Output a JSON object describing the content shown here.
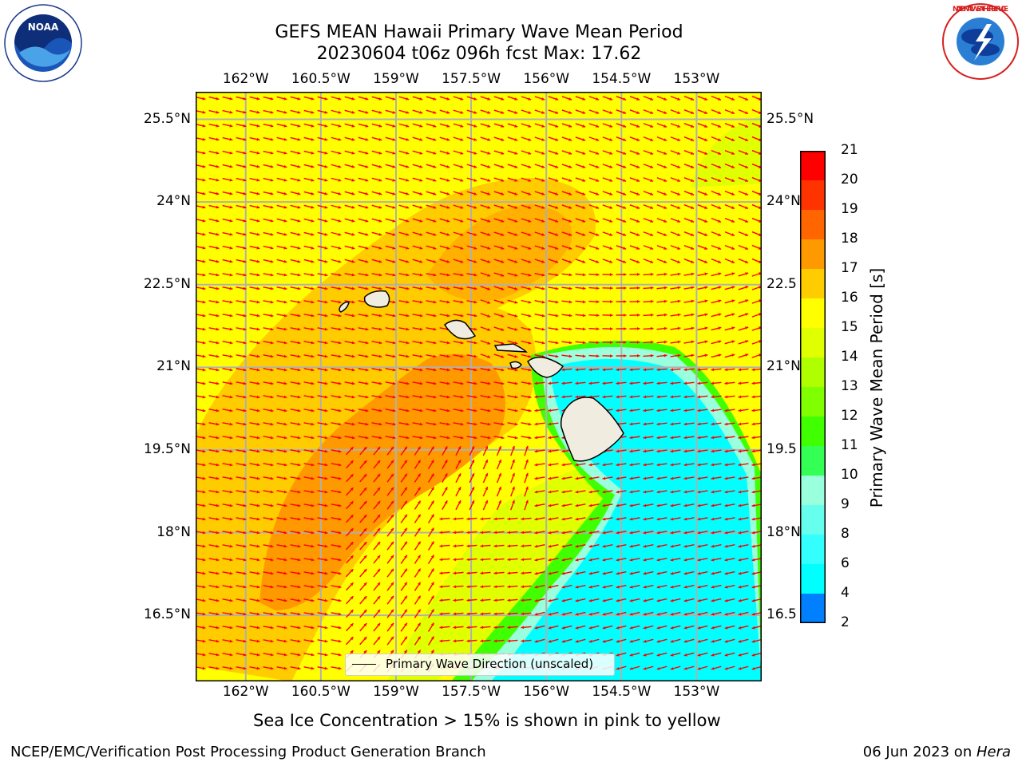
{
  "header": {
    "title_line1": "GEFS MEAN Hawaii Primary Wave Mean Period",
    "title_line2": "20230604 t06z 096h fcst   Max: 17.62"
  },
  "logos": {
    "noaa_text": "NOAA",
    "noaa_ring": "NATIONAL OCEANIC AND ATMOSPHERIC ADMINISTRATION · U.S. DEPARTMENT OF COMMERCE",
    "nws_ring": "NATIONAL WEATHER SERVICE"
  },
  "map": {
    "lon_labels": [
      "162°W",
      "160.5°W",
      "159°W",
      "157.5°W",
      "156°W",
      "154.5°W",
      "153°W"
    ],
    "lat_labels_left": [
      "25.5°N",
      "24°N",
      "22.5°N",
      "21°N",
      "19.5°N",
      "18°N",
      "16.5°N"
    ],
    "lat_labels_right": [
      "25.5°N",
      "24°N",
      "22.5",
      "21°N",
      "19.5",
      "18°N",
      "16.5"
    ],
    "lon_values": [
      -162,
      -160.5,
      -159,
      -157.5,
      -156,
      -154.5,
      -153
    ],
    "lat_values": [
      25.5,
      24,
      22.5,
      21,
      19.5,
      18,
      16.5
    ],
    "legend": "Primary Wave Direction (unscaled)",
    "arrow_color": "#ff0000",
    "max_value": 17.62
  },
  "colorbar": {
    "label": "Primary Wave Mean Period [s]",
    "tick_labels": [
      "21",
      "20",
      "19",
      "18",
      "17",
      "16",
      "15",
      "14",
      "13",
      "12",
      "11",
      "10",
      "9",
      "8",
      "6",
      "4",
      "2"
    ],
    "colors": [
      "#ff0000",
      "#ff3300",
      "#ff6600",
      "#ff9900",
      "#ffcc00",
      "#ffff00",
      "#e0ff00",
      "#b0ff00",
      "#80ff00",
      "#40ff00",
      "#33ff55",
      "#99ffdd",
      "#66ffee",
      "#33ffff",
      "#00ffff",
      "#0080ff",
      "#0000ff"
    ]
  },
  "footer": {
    "ice_note": "Sea Ice Concentration > 15% is shown in pink to yellow",
    "branch": "NCEP/EMC/Verification Post Processing Product Generation Branch",
    "date": "06 Jun 2023 on ",
    "machine": "Hera"
  }
}
